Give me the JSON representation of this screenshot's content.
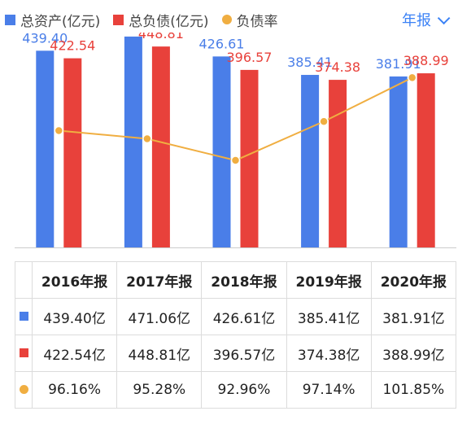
{
  "legend": {
    "assets": "总资产(亿元)",
    "liabilities": "总负债(亿元)",
    "ratio": "负债率"
  },
  "period_selector": {
    "label": "年报"
  },
  "colors": {
    "assets": "#4a7ee8",
    "liabilities": "#e8413b",
    "ratio": "#f0ae41",
    "accent": "#3b82f6",
    "axis": "#cccccc"
  },
  "chart_data": {
    "type": "bar",
    "categories": [
      "2016年报",
      "2017年报",
      "2018年报",
      "2019年报",
      "2020年报"
    ],
    "series": [
      {
        "name": "总资产(亿元)",
        "type": "bar",
        "values": [
          439.4,
          471.06,
          426.61,
          385.41,
          381.91
        ],
        "labels": [
          "439.40",
          "471.06",
          "426.61",
          "385.41",
          "381.91"
        ]
      },
      {
        "name": "总负债(亿元)",
        "type": "bar",
        "values": [
          422.54,
          448.81,
          396.57,
          374.38,
          388.99
        ],
        "labels": [
          "422.54",
          "448.81",
          "396.57",
          "374.38",
          "388.99"
        ]
      },
      {
        "name": "负债率",
        "type": "line",
        "values": [
          96.16,
          95.28,
          92.96,
          97.14,
          101.85
        ]
      }
    ],
    "ylim": [
      0,
      480
    ],
    "ratio_ylim": [
      88.5,
      102.5
    ],
    "grid": false,
    "legend_position": "top-left"
  },
  "table": {
    "headers": [
      "2016年报",
      "2017年报",
      "2018年报",
      "2019年报",
      "2020年报"
    ],
    "rows": [
      {
        "kind": "assets",
        "cells": [
          "439.40亿",
          "471.06亿",
          "426.61亿",
          "385.41亿",
          "381.91亿"
        ]
      },
      {
        "kind": "liabilities",
        "cells": [
          "422.54亿",
          "448.81亿",
          "396.57亿",
          "374.38亿",
          "388.99亿"
        ]
      },
      {
        "kind": "ratio",
        "cells": [
          "96.16%",
          "95.28%",
          "92.96%",
          "97.14%",
          "101.85%"
        ]
      }
    ]
  }
}
